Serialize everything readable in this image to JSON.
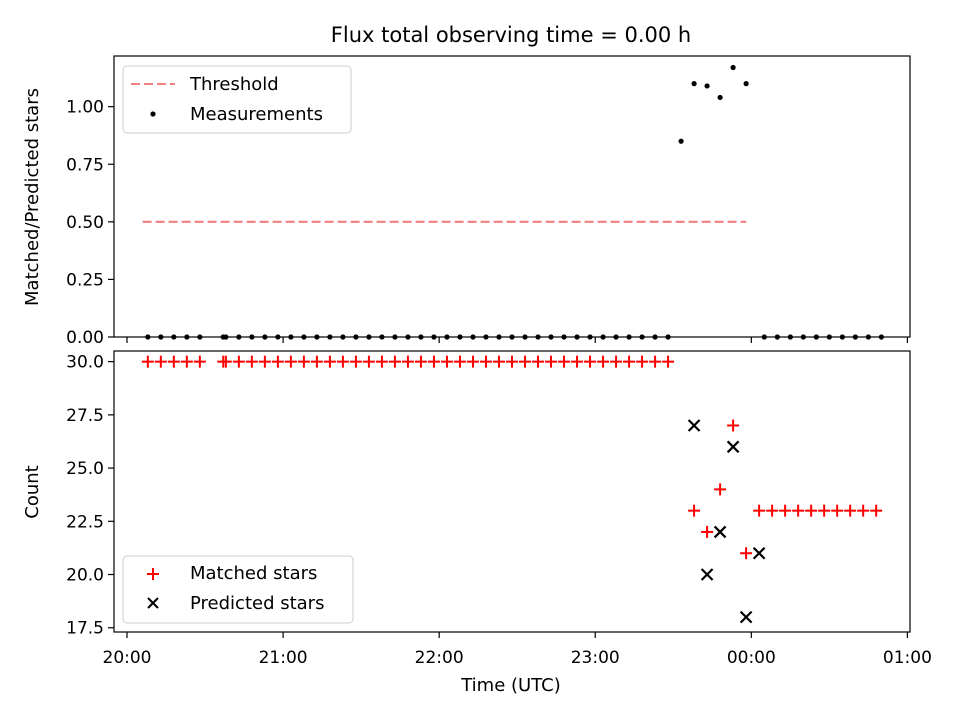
{
  "title": "Flux total observing time = 0.00 h",
  "xlabel": "Time (UTC)",
  "x_ticks": [
    "20:00",
    "21:00",
    "22:00",
    "23:00",
    "00:00",
    "01:00"
  ],
  "chart_data": [
    {
      "type": "scatter",
      "ylabel": "Matched/Predicted stars",
      "ylim": [
        0,
        1.22
      ],
      "y_ticks": [
        "0.00",
        "0.25",
        "0.50",
        "0.75",
        "1.00"
      ],
      "y_tick_values": [
        0,
        0.25,
        0.5,
        0.75,
        1.0
      ],
      "legend_position": "upper-left",
      "series": [
        {
          "name": "Threshold",
          "kind": "dashed-line",
          "color": "#f08080",
          "x": [
            "20:06",
            "23:58"
          ],
          "y": [
            0.5,
            0.5
          ]
        },
        {
          "name": "Measurements",
          "kind": "dots",
          "color": "#000000",
          "x": [
            "20:08",
            "20:13",
            "20:18",
            "20:23",
            "20:28",
            "20:37",
            "20:38",
            "20:43",
            "20:48",
            "20:53",
            "20:58",
            "21:03",
            "21:08",
            "21:13",
            "21:18",
            "21:23",
            "21:28",
            "21:33",
            "21:38",
            "21:43",
            "21:48",
            "21:53",
            "21:58",
            "22:03",
            "22:08",
            "22:13",
            "22:18",
            "22:23",
            "22:28",
            "22:33",
            "22:38",
            "22:43",
            "22:48",
            "22:53",
            "22:58",
            "23:03",
            "23:08",
            "23:13",
            "23:18",
            "23:23",
            "23:28",
            "23:33",
            "23:38",
            "23:43",
            "23:48",
            "23:53",
            "23:58",
            "00:05",
            "00:10",
            "00:15",
            "00:20",
            "00:25",
            "00:30",
            "00:35",
            "00:40",
            "00:45",
            "00:50"
          ],
          "y": [
            0,
            0,
            0,
            0,
            0,
            0,
            0,
            0,
            0,
            0,
            0,
            0,
            0,
            0,
            0,
            0,
            0,
            0,
            0,
            0,
            0,
            0,
            0,
            0,
            0,
            0,
            0,
            0,
            0,
            0,
            0,
            0,
            0,
            0,
            0,
            0,
            0,
            0,
            0,
            0,
            0,
            0.85,
            1.1,
            1.09,
            1.04,
            1.17,
            1.1,
            0,
            0,
            0,
            0,
            0,
            0,
            0,
            0,
            0,
            0
          ]
        }
      ]
    },
    {
      "type": "scatter",
      "ylabel": "Count",
      "ylim": [
        17.3,
        30.5
      ],
      "y_ticks": [
        "17.5",
        "20.0",
        "22.5",
        "25.0",
        "27.5",
        "30.0"
      ],
      "y_tick_values": [
        17.5,
        20.0,
        22.5,
        25.0,
        27.5,
        30.0
      ],
      "legend_position": "lower-left",
      "series": [
        {
          "name": "Matched stars",
          "kind": "plus",
          "color": "#ff0000",
          "x": [
            "20:08",
            "20:13",
            "20:18",
            "20:23",
            "20:28",
            "20:37",
            "20:38",
            "20:43",
            "20:48",
            "20:53",
            "20:58",
            "21:03",
            "21:08",
            "21:13",
            "21:18",
            "21:23",
            "21:28",
            "21:33",
            "21:38",
            "21:43",
            "21:48",
            "21:53",
            "21:58",
            "22:03",
            "22:08",
            "22:13",
            "22:18",
            "22:23",
            "22:28",
            "22:33",
            "22:38",
            "22:43",
            "22:48",
            "22:53",
            "22:58",
            "23:03",
            "23:08",
            "23:13",
            "23:18",
            "23:23",
            "23:28",
            "23:38",
            "23:43",
            "23:48",
            "23:53",
            "23:58",
            "00:03",
            "00:08",
            "00:13",
            "00:18",
            "00:23",
            "00:28",
            "00:33",
            "00:38",
            "00:43",
            "00:48"
          ],
          "y": [
            30,
            30,
            30,
            30,
            30,
            30,
            30,
            30,
            30,
            30,
            30,
            30,
            30,
            30,
            30,
            30,
            30,
            30,
            30,
            30,
            30,
            30,
            30,
            30,
            30,
            30,
            30,
            30,
            30,
            30,
            30,
            30,
            30,
            30,
            30,
            30,
            30,
            30,
            30,
            30,
            30,
            23,
            22,
            24,
            27,
            21,
            23,
            23,
            23,
            23,
            23,
            23,
            23,
            23,
            23,
            23
          ]
        },
        {
          "name": "Predicted stars",
          "kind": "x",
          "color": "#000000",
          "x": [
            "23:38",
            "23:43",
            "23:48",
            "23:53",
            "23:58",
            "00:03"
          ],
          "y": [
            27,
            20,
            22,
            26,
            18,
            21
          ]
        }
      ]
    }
  ]
}
